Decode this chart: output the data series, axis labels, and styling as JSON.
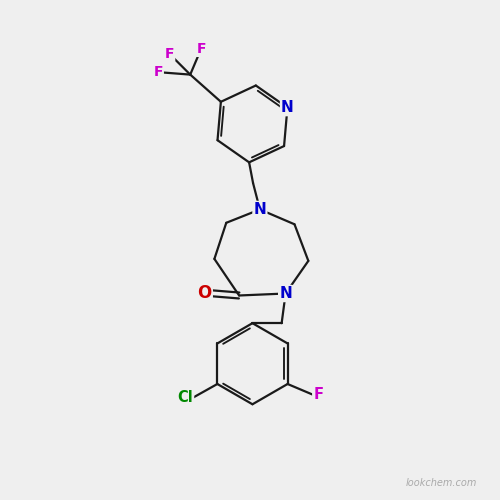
{
  "bg_color": "#efefef",
  "bond_color": "#1a1a1a",
  "bond_width": 1.6,
  "atom_colors": {
    "N": "#0000cc",
    "O": "#cc0000",
    "F": "#cc00cc",
    "Cl": "#008800",
    "C": "#1a1a1a"
  },
  "font_size": 10.5,
  "watermark": "lookchem.com",
  "watermark_color": "#aaaaaa",
  "watermark_size": 7
}
